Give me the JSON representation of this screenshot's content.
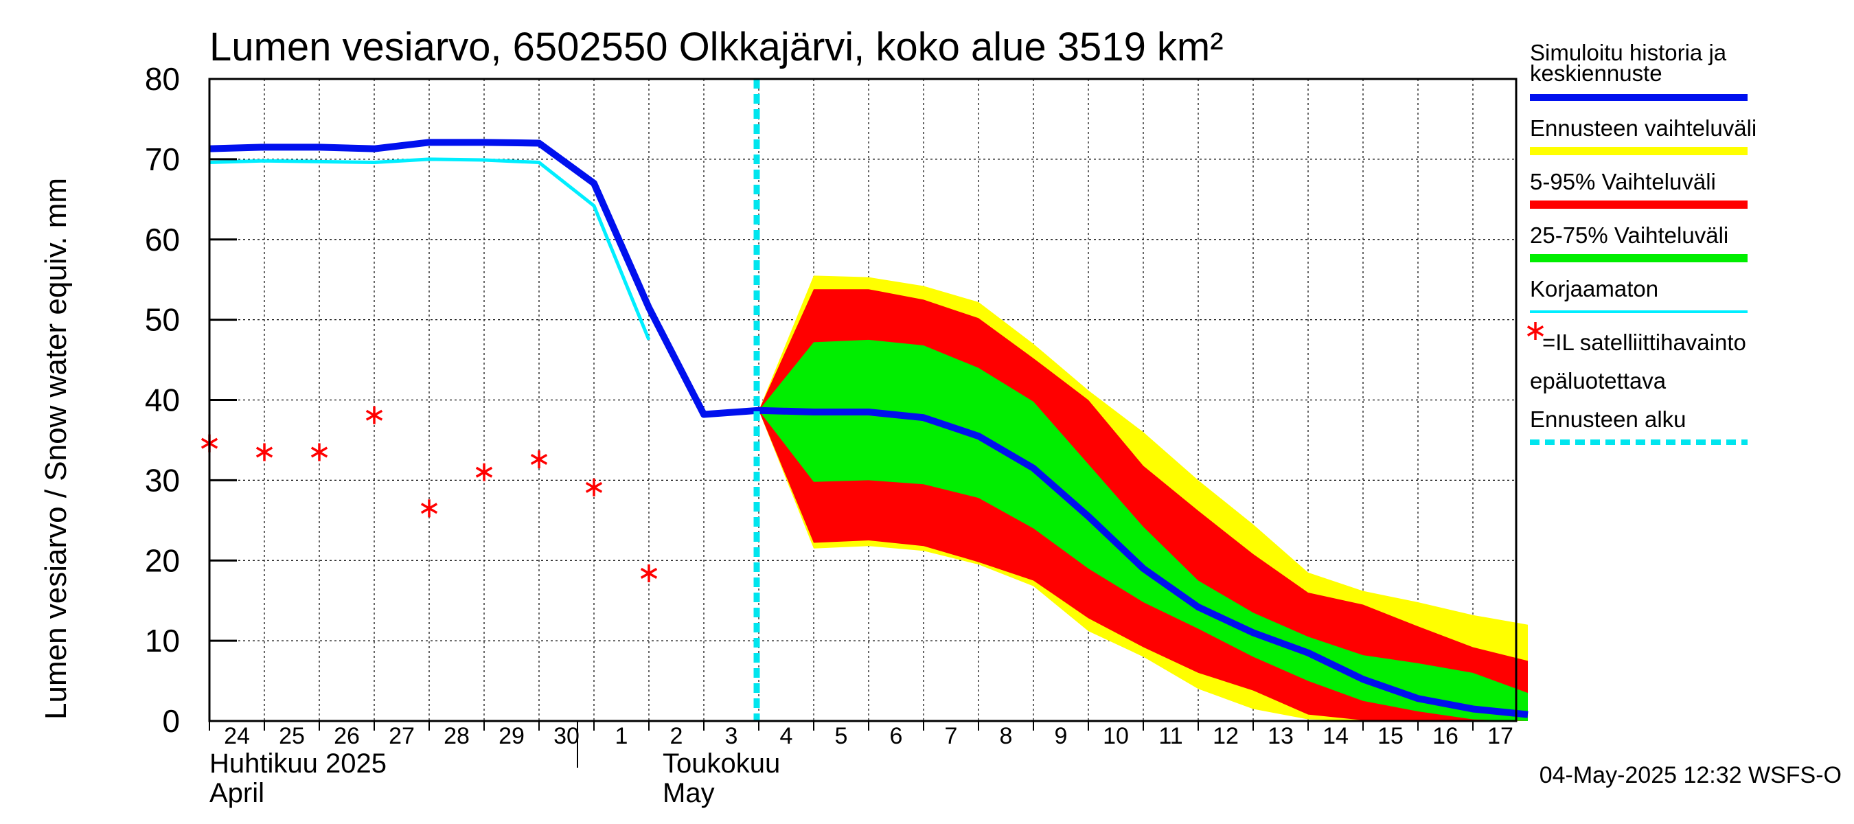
{
  "title": "Lumen vesiarvo, 6502550 Olkkajärvi, koko alue 3519 km²",
  "ylabel": "Lumen vesiarvo / Snow water equiv.    mm",
  "footer": "04-May-2025 12:32 WSFS-O",
  "colors": {
    "simulated": "#0010ee",
    "forecast_range": "#ffff00",
    "range_5_95": "#ff0000",
    "range_25_75": "#00ee00",
    "uncorrected": "#00eeff",
    "satellite": "#ff0000",
    "forecast_start": "#00e5ee"
  },
  "legend": [
    {
      "label": "Simuloitu historia ja keskiennuste",
      "type": "line",
      "color": "#0010ee"
    },
    {
      "label": "Ennusteen vaihteluväli",
      "type": "line",
      "color": "#ffff00"
    },
    {
      "label": "5-95% Vaihteluväli",
      "type": "line",
      "color": "#ff0000"
    },
    {
      "label": "25-75% Vaihteluväli",
      "type": "line",
      "color": "#00ee00"
    },
    {
      "label": "Korjaamaton",
      "type": "thin",
      "color": "#00eeff"
    },
    {
      "label": "=IL satelliittihavainto",
      "type": "star",
      "color": "#ff0000"
    },
    {
      "label": "epäluotettava",
      "type": "none",
      "color": ""
    },
    {
      "label": "Ennusteen alku",
      "type": "dash",
      "color": "#00e5ee"
    }
  ],
  "chart_data": {
    "type": "line",
    "title": "Lumen vesiarvo, 6502550 Olkkajärvi, koko alue 3519 km²",
    "ylabel": "Lumen vesiarvo / Snow water equiv. mm",
    "ylim": [
      0,
      80
    ],
    "yticks": [
      0,
      10,
      20,
      30,
      40,
      50,
      60,
      70,
      80
    ],
    "xlim": [
      0,
      24
    ],
    "x_tick_labels": [
      {
        "x": 0,
        "label": "24"
      },
      {
        "x": 1,
        "label": "25"
      },
      {
        "x": 2,
        "label": "26"
      },
      {
        "x": 3,
        "label": "27"
      },
      {
        "x": 4,
        "label": "28"
      },
      {
        "x": 5,
        "label": "29"
      },
      {
        "x": 6,
        "label": "30"
      },
      {
        "x": 7,
        "label": "1"
      },
      {
        "x": 8,
        "label": "2"
      },
      {
        "x": 9,
        "label": "3"
      },
      {
        "x": 10,
        "label": "4"
      },
      {
        "x": 11,
        "label": "5"
      },
      {
        "x": 12,
        "label": "6"
      },
      {
        "x": 13,
        "label": "7"
      },
      {
        "x": 14,
        "label": "8"
      },
      {
        "x": 15,
        "label": "9"
      },
      {
        "x": 16,
        "label": "10"
      },
      {
        "x": 17,
        "label": "11"
      },
      {
        "x": 18,
        "label": "12"
      },
      {
        "x": 19,
        "label": "13"
      },
      {
        "x": 20,
        "label": "14"
      },
      {
        "x": 21,
        "label": "15"
      },
      {
        "x": 22,
        "label": "16"
      },
      {
        "x": 23,
        "label": "17"
      }
    ],
    "month_labels": [
      {
        "x": 0,
        "line1": "Huhtikuu  2025",
        "line2": "April"
      },
      {
        "x": 8,
        "line1": "Toukokuu",
        "line2": "May"
      }
    ],
    "month_boundary_x": 7,
    "forecast_start_x": 10,
    "simulated": {
      "x": [
        0,
        1,
        2,
        3,
        4,
        5,
        6,
        7,
        8,
        9,
        10,
        11,
        12,
        13,
        14,
        15,
        16,
        17,
        18,
        19,
        20,
        21,
        22,
        23,
        24
      ],
      "y": [
        71.3,
        71.5,
        71.5,
        71.3,
        72.1,
        72.1,
        72.0,
        67.0,
        51.5,
        38.2,
        38.7,
        38.5,
        38.5,
        37.8,
        35.5,
        31.5,
        25.5,
        19.0,
        14.2,
        11.0,
        8.5,
        5.2,
        2.8,
        1.5,
        0.8
      ]
    },
    "uncorrected": {
      "x": [
        0,
        1,
        2,
        3,
        4,
        5,
        6,
        7,
        8
      ],
      "y": [
        69.6,
        69.8,
        69.7,
        69.6,
        70.0,
        69.9,
        69.6,
        64.2,
        47.5
      ]
    },
    "forecast_x": [
      10,
      11,
      12,
      13,
      14,
      15,
      16,
      17,
      18,
      19,
      20,
      21,
      22,
      23,
      24
    ],
    "forecast_range": {
      "low": [
        38.7,
        21.5,
        21.8,
        21.2,
        19.5,
        16.8,
        11.2,
        8.0,
        4.0,
        1.5,
        0.2,
        0.0,
        0.0,
        0.0,
        0.0
      ],
      "high": [
        38.7,
        55.5,
        55.3,
        54.2,
        52.2,
        47.0,
        41.2,
        36.0,
        30.0,
        24.5,
        18.5,
        16.2,
        14.8,
        13.2,
        12.0
      ]
    },
    "range_5_95": {
      "low": [
        38.7,
        22.2,
        22.5,
        21.8,
        19.8,
        17.5,
        12.8,
        9.2,
        6.0,
        3.8,
        0.8,
        0.1,
        0.0,
        0.0,
        0.0
      ],
      "high": [
        38.7,
        53.8,
        53.8,
        52.5,
        50.2,
        45.2,
        40.0,
        31.8,
        26.2,
        20.8,
        16.0,
        14.5,
        11.8,
        9.2,
        7.5
      ]
    },
    "range_25_75": {
      "low": [
        38.7,
        29.8,
        30.0,
        29.5,
        27.8,
        24.0,
        19.0,
        14.8,
        11.5,
        8.0,
        5.0,
        2.5,
        1.2,
        0.2,
        0.0
      ],
      "high": [
        38.7,
        47.2,
        47.5,
        46.8,
        44.0,
        39.8,
        32.0,
        24.2,
        17.5,
        13.5,
        10.5,
        8.2,
        7.2,
        6.0,
        3.5
      ]
    },
    "satellite_observations": {
      "x": [
        0,
        1,
        2,
        3,
        4,
        5,
        6,
        7,
        8
      ],
      "y": [
        34.6,
        33.5,
        33.5,
        38.1,
        26.5,
        31.0,
        32.6,
        29.1,
        18.4
      ]
    }
  }
}
